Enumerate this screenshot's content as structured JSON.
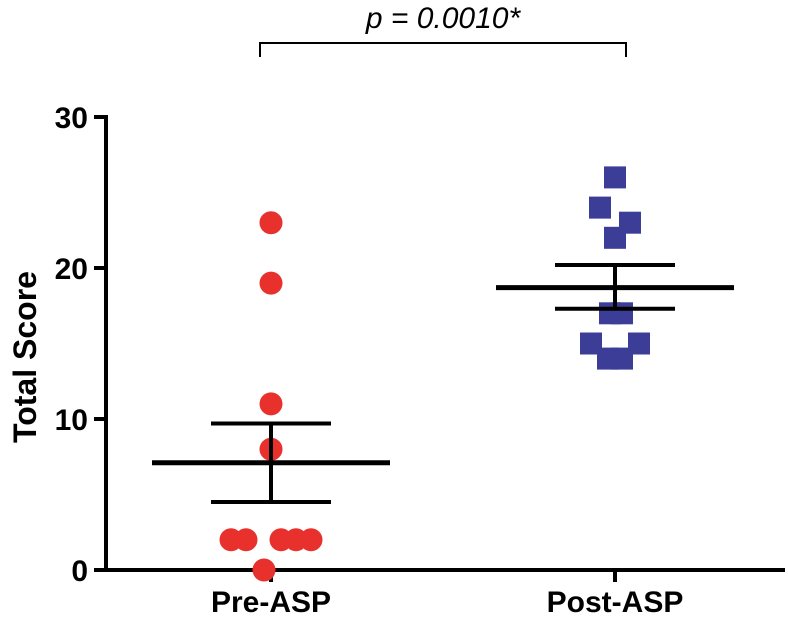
{
  "chart_data": {
    "type": "scatter",
    "ylabel": "Total Score",
    "xlabel": "",
    "ylim": [
      0,
      30
    ],
    "yticks": [
      {
        "value": 0,
        "label": "0"
      },
      {
        "value": 10,
        "label": "10"
      },
      {
        "value": 20,
        "label": "20"
      },
      {
        "value": 30,
        "label": "30"
      }
    ],
    "categories": [
      "Pre-ASP",
      "Post-ASP"
    ],
    "annotation": "p = 0.0010*",
    "grid": false,
    "series": [
      {
        "name": "Pre-ASP",
        "marker": "circle",
        "color": "#e8302c",
        "points": [
          {
            "offset": 0.0,
            "y": 23
          },
          {
            "offset": 0.0,
            "y": 19
          },
          {
            "offset": 0.0,
            "y": 11
          },
          {
            "offset": 0.0,
            "y": 8
          },
          {
            "offset": -0.4,
            "y": 2
          },
          {
            "offset": -0.25,
            "y": 2
          },
          {
            "offset": 0.1,
            "y": 2
          },
          {
            "offset": 0.25,
            "y": 2
          },
          {
            "offset": 0.4,
            "y": 2
          },
          {
            "offset": -0.07,
            "y": 0
          }
        ],
        "mean": 7.1,
        "sem_upper": 9.7,
        "sem_lower": 4.5
      },
      {
        "name": "Post-ASP",
        "marker": "square",
        "color": "#3b3d96",
        "points": [
          {
            "offset": 0.0,
            "y": 26
          },
          {
            "offset": -0.15,
            "y": 24
          },
          {
            "offset": 0.15,
            "y": 23
          },
          {
            "offset": 0.0,
            "y": 22
          },
          {
            "offset": -0.05,
            "y": 17
          },
          {
            "offset": 0.07,
            "y": 17
          },
          {
            "offset": -0.24,
            "y": 15
          },
          {
            "offset": 0.24,
            "y": 15
          },
          {
            "offset": -0.07,
            "y": 14
          },
          {
            "offset": 0.07,
            "y": 14
          }
        ],
        "mean": 18.7,
        "sem_upper": 20.2,
        "sem_lower": 17.3
      }
    ]
  }
}
